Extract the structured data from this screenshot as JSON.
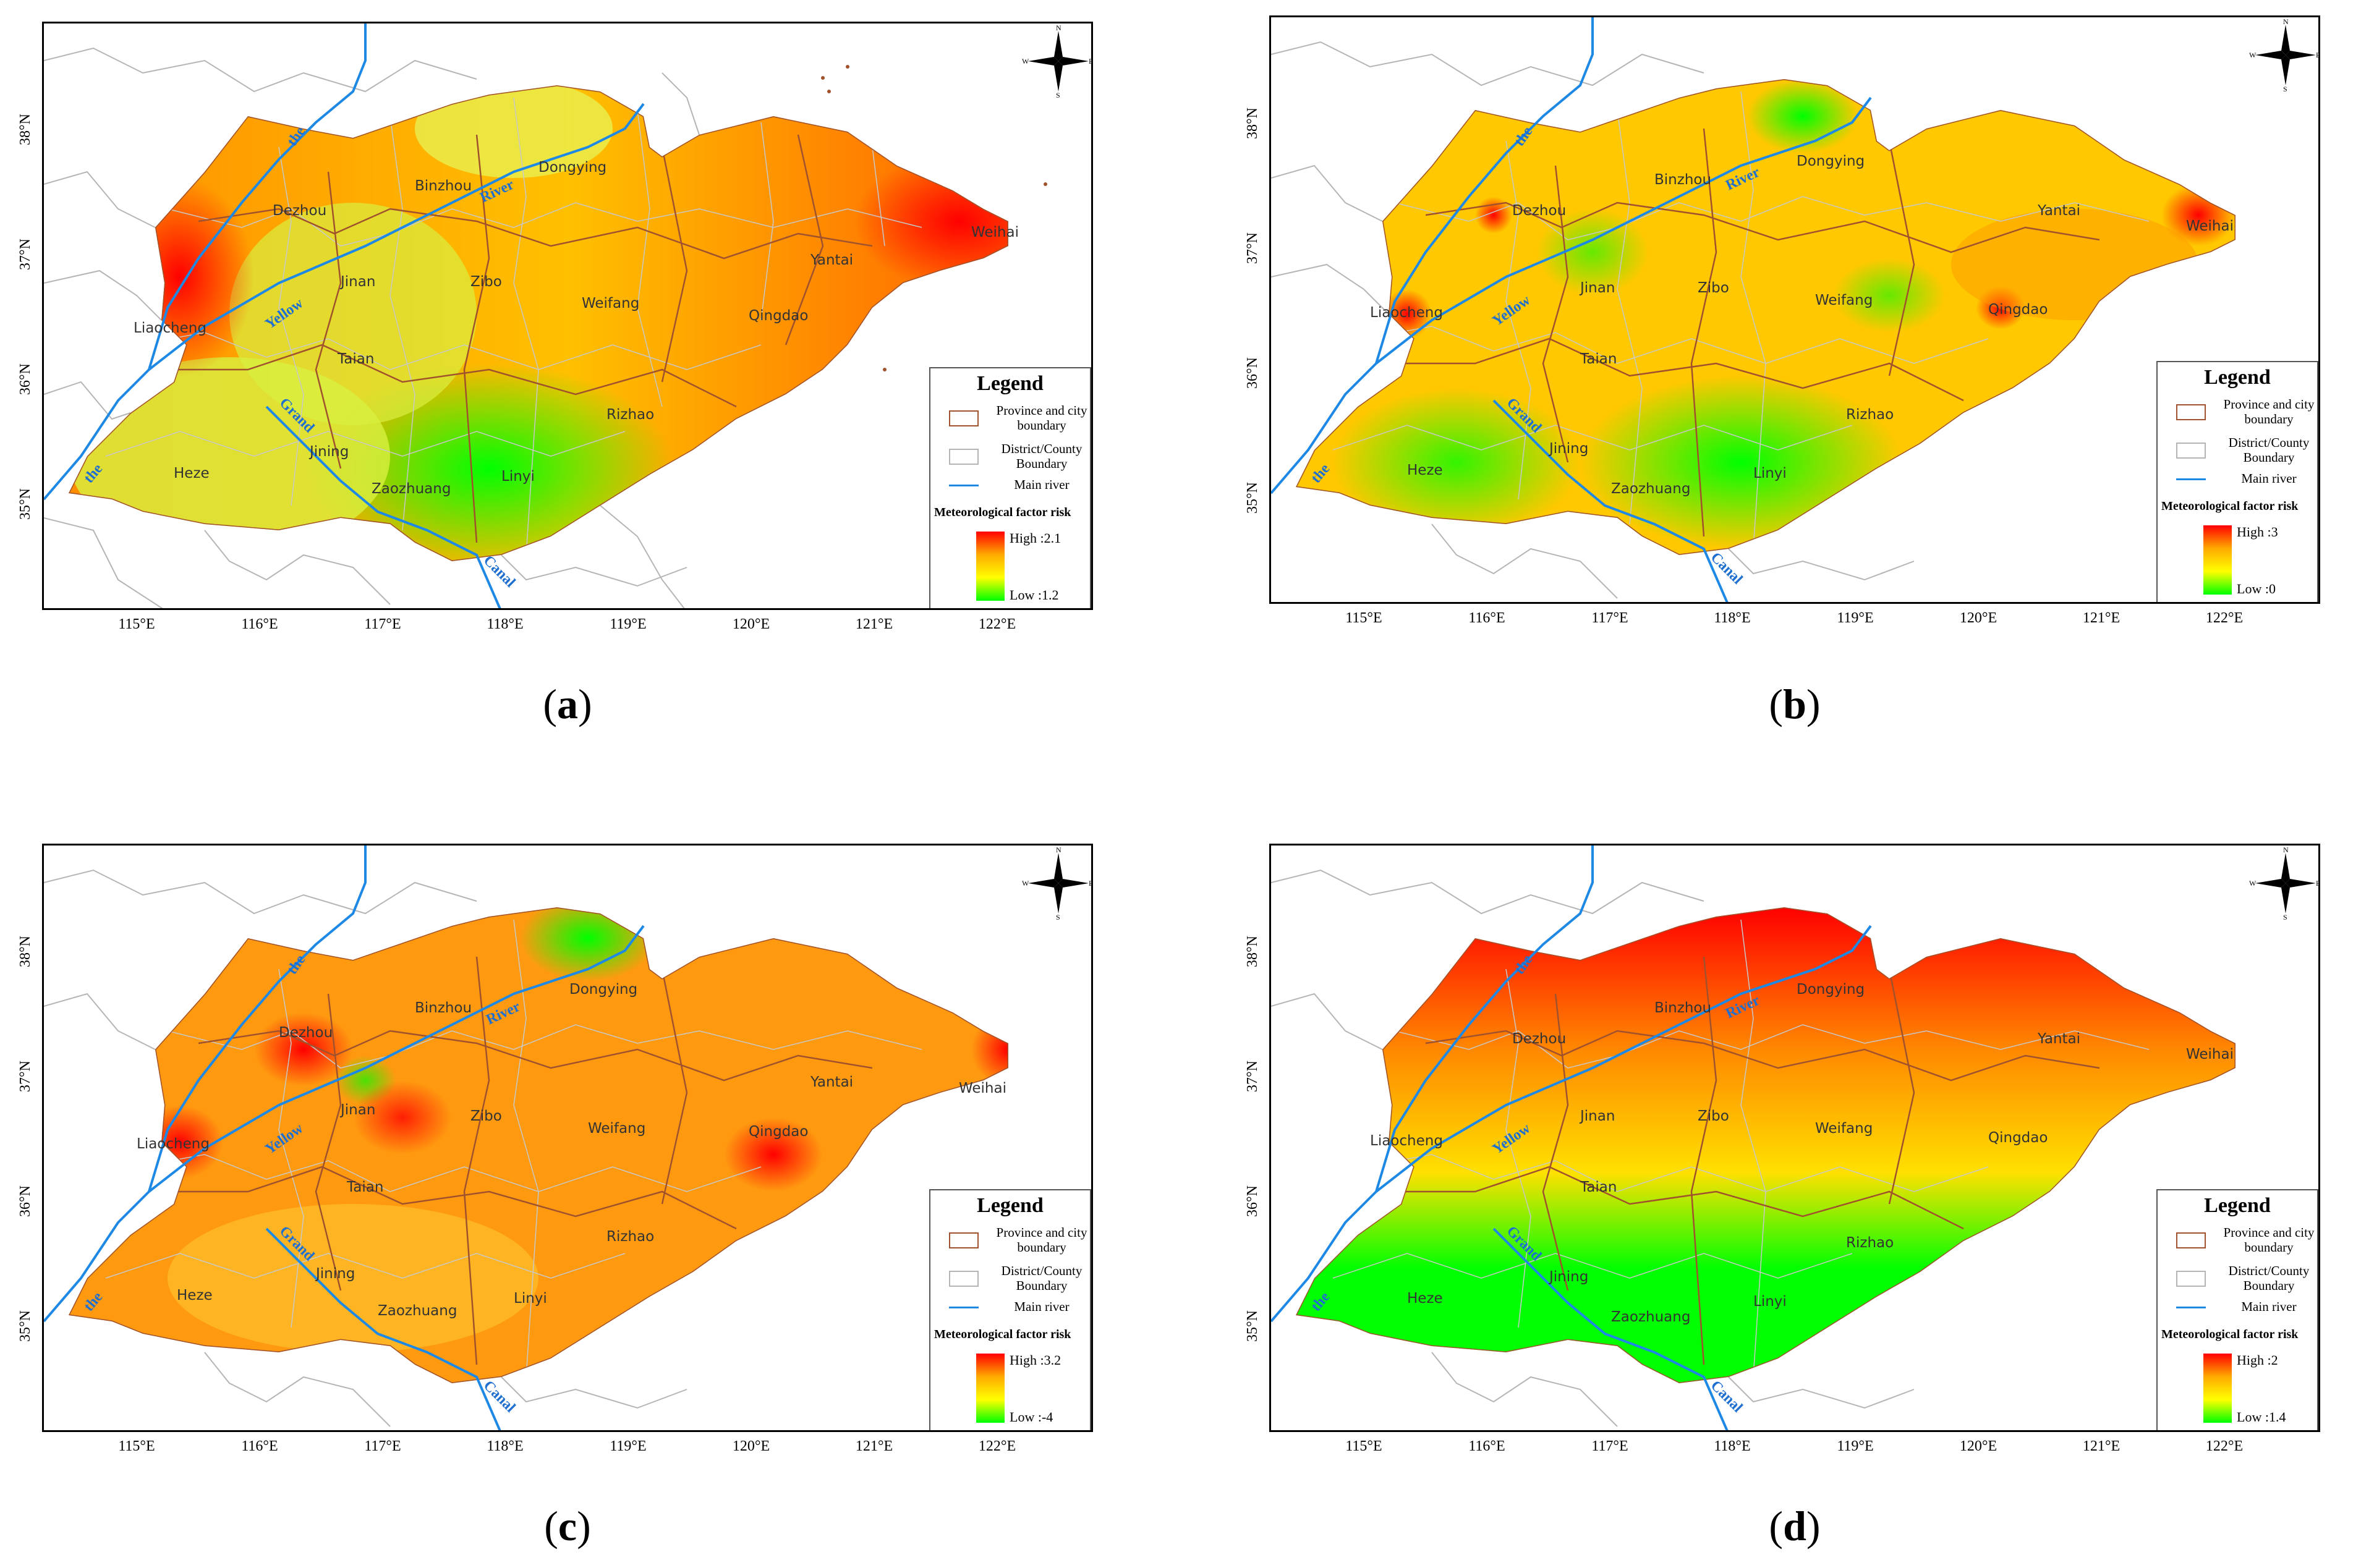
{
  "x_ticks": [
    "115°E",
    "116°E",
    "117°E",
    "118°E",
    "119°E",
    "120°E",
    "121°E",
    "122°E"
  ],
  "y_ticks": [
    "38°N",
    "37°N",
    "36°N",
    "35°N"
  ],
  "cities": [
    "Dezhou",
    "Binzhou",
    "Dongying",
    "Yantai",
    "Weihai",
    "Liaocheng",
    "Jinan",
    "Zibo",
    "Weifang",
    "Qingdao",
    "Taian",
    "Rizhao",
    "Heze",
    "Jining",
    "Zaozhuang",
    "Linyi"
  ],
  "rivers": {
    "the": "the",
    "yellow": "Yellow",
    "river": "River",
    "grand": "Grand",
    "canal": "Canal"
  },
  "compass": {
    "n": "N",
    "s": "S",
    "e": "E",
    "w": "W"
  },
  "legend": {
    "title": "Legend",
    "province": "Province and city boundary",
    "district": "District/County Boundary",
    "river": "Main river",
    "risk_title": "Meteorological factor risk"
  },
  "colors": {
    "high": "#ff0000",
    "mid": "#ffaa00",
    "low": "#00ff00",
    "river": "#1e88e5",
    "province": "#a0522d"
  },
  "panels": [
    {
      "caption": "a",
      "high": "High :2.1",
      "low": "Low :1.2"
    },
    {
      "caption": "b",
      "high": "High :3",
      "low": "Low :0"
    },
    {
      "caption": "c",
      "high": "High :3.2",
      "low": "Low :-4"
    },
    {
      "caption": "d",
      "high": "High :2",
      "low": "Low :1.4"
    }
  ]
}
